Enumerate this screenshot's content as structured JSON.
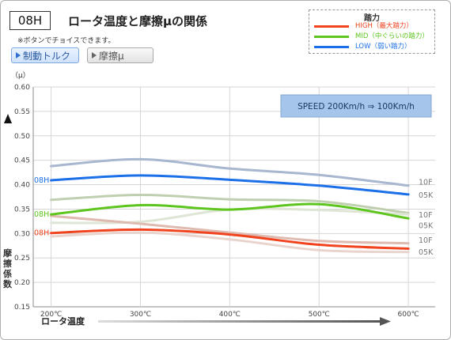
{
  "header": {
    "badge": "08H",
    "title": "ロータ温度と摩擦μの関係",
    "note": "※ボタンでチョイスできます。"
  },
  "buttons": [
    {
      "label": "制動トルク",
      "active": true
    },
    {
      "label": "摩擦μ",
      "active": false
    }
  ],
  "legend": {
    "title": "踏力",
    "items": [
      {
        "label": "HIGH（最大踏力）",
        "color": "#f0431e"
      },
      {
        "label": "MID（中ぐらいの踏力）",
        "color": "#5dc51e"
      },
      {
        "label": "LOW（弱い踏力）",
        "color": "#1b6fe8"
      }
    ]
  },
  "speed_label": "SPEED  200Km/h ⇒ 100Km/h",
  "chart_data": {
    "type": "line",
    "y_unit": "（μ）",
    "ylabel": "摩擦係数",
    "xlabel": "ロータ温度",
    "x": [
      200,
      300,
      400,
      500,
      600
    ],
    "x_tick_labels": [
      "200℃",
      "300℃",
      "400℃",
      "500℃",
      "600℃"
    ],
    "xlim": [
      180,
      630
    ],
    "ylim": [
      0.15,
      0.6
    ],
    "y_ticks": [
      0.15,
      0.2,
      0.25,
      0.3,
      0.35,
      0.4,
      0.45,
      0.5,
      0.55,
      0.6
    ],
    "y_tick_labels": [
      "0.15",
      "0.20",
      "0.25",
      "0.30",
      "0.35",
      "0.40",
      "0.45",
      "0.50",
      "0.55",
      "0.60"
    ],
    "grid": true,
    "series": [
      {
        "name": "LOW 10F",
        "color": "#a6b7cf",
        "values": [
          0.438,
          0.452,
          0.433,
          0.42,
          0.398
        ]
      },
      {
        "name": "LOW 05K",
        "color": "#1b6fe8",
        "values": [
          0.409,
          0.419,
          0.41,
          0.398,
          0.38
        ]
      },
      {
        "name": "MID 10F",
        "color": "#bfcfb0",
        "values": [
          0.369,
          0.379,
          0.37,
          0.366,
          0.342
        ]
      },
      {
        "name": "MID 05K",
        "color": "#5dc51e",
        "values": [
          0.339,
          0.358,
          0.349,
          0.36,
          0.331
        ]
      },
      {
        "name": "MID light",
        "color": "#dfe5d4",
        "values": [
          0.322,
          0.324,
          0.349,
          0.348,
          0.339
        ]
      },
      {
        "name": "HIGH 10F",
        "color": "#dfbab0",
        "values": [
          0.336,
          0.32,
          0.302,
          0.285,
          0.28
        ]
      },
      {
        "name": "HIGH 05K",
        "color": "#f0431e",
        "values": [
          0.301,
          0.308,
          0.298,
          0.277,
          0.269
        ]
      },
      {
        "name": "HIGH light",
        "color": "#e8d4cd",
        "values": [
          0.294,
          0.302,
          0.288,
          0.266,
          0.262
        ]
      }
    ],
    "left_labels": [
      {
        "text": "08H",
        "y": 0.409,
        "color": "#1b6fe8"
      },
      {
        "text": "08H",
        "y": 0.339,
        "color": "#5dc51e"
      },
      {
        "text": "08H",
        "y": 0.301,
        "color": "#f0431e"
      }
    ],
    "right_labels": [
      {
        "text": "10F",
        "y": 0.405
      },
      {
        "text": "05K",
        "y": 0.378
      },
      {
        "text": "10F",
        "y": 0.338
      },
      {
        "text": "05K",
        "y": 0.316
      },
      {
        "text": "10F",
        "y": 0.286
      },
      {
        "text": "05K",
        "y": 0.262
      }
    ]
  }
}
